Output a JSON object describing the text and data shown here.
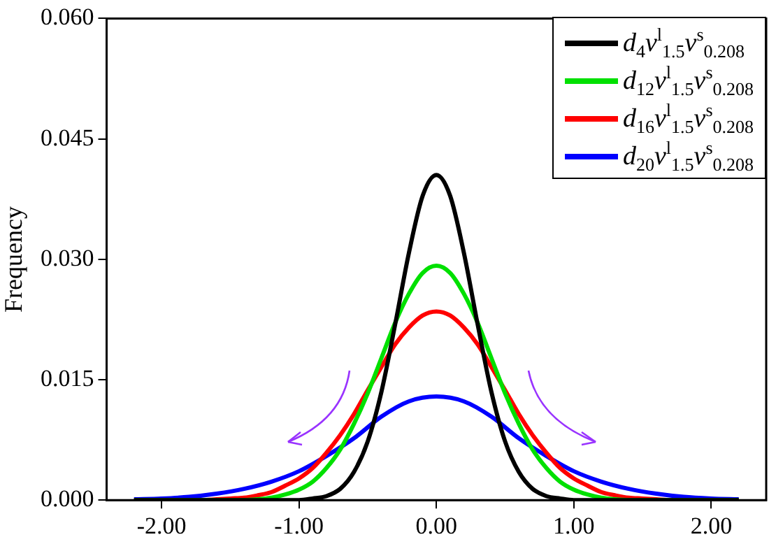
{
  "chart_data": {
    "type": "line",
    "ylabel": "Frequency",
    "xlim": [
      -2.4,
      2.4
    ],
    "ylim": [
      0,
      0.06
    ],
    "xticks": [
      {
        "value": -2,
        "label": "-2.00"
      },
      {
        "value": -1,
        "label": "-1.00"
      },
      {
        "value": 0,
        "label": "0.00"
      },
      {
        "value": 1,
        "label": "1.00"
      },
      {
        "value": 2,
        "label": "2.00"
      }
    ],
    "yticks": [
      {
        "value": 0,
        "label": "0.000"
      },
      {
        "value": 0.015,
        "label": "0.015"
      },
      {
        "value": 0.03,
        "label": "0.030"
      },
      {
        "value": 0.045,
        "label": "0.045"
      },
      {
        "value": 0.06,
        "label": "0.060"
      }
    ],
    "grid": false,
    "legend": "top right",
    "marker": "none",
    "line_style": "solid",
    "series": [
      {
        "name": "d$_{4}$ν$^{l}$$_{1.5}$ν$^{s}$$_{0.208}$",
        "color": "#000000",
        "x": [
          -2.2,
          -1.0,
          -0.9,
          -0.8,
          -0.7,
          -0.6,
          -0.5,
          -0.4,
          -0.3,
          -0.2,
          -0.1,
          0,
          0.1,
          0.2,
          0.3,
          0.4,
          0.5,
          0.6,
          0.7,
          0.8,
          0.9,
          1.0,
          2.2
        ],
        "values": [
          0,
          0,
          0.0002,
          0.0005,
          0.0014,
          0.0035,
          0.0073,
          0.0135,
          0.0219,
          0.0308,
          0.0379,
          0.0405,
          0.0379,
          0.0308,
          0.0219,
          0.0135,
          0.0073,
          0.0035,
          0.0014,
          0.0005,
          0.0002,
          0,
          0
        ]
      },
      {
        "name": "d$_{12}$ν$^{l}$$_{1.5}$ν$^{s}$$_{0.208}$",
        "color": "#00e000",
        "x": [
          -2.2,
          -1.4,
          -1.3,
          -1.2,
          -1.1,
          -1.0,
          -0.9,
          -0.8,
          -0.7,
          -0.6,
          -0.5,
          -0.4,
          -0.3,
          -0.2,
          -0.1,
          0,
          0.1,
          0.2,
          0.3,
          0.4,
          0.5,
          0.6,
          0.7,
          0.8,
          0.9,
          1.0,
          1.1,
          1.2,
          1.3,
          1.4,
          2.2
        ],
        "values": [
          0,
          0,
          0.0001,
          0.0003,
          0.0007,
          0.0013,
          0.0023,
          0.004,
          0.0063,
          0.0095,
          0.0133,
          0.0177,
          0.0221,
          0.0257,
          0.0283,
          0.0292,
          0.0283,
          0.0257,
          0.0221,
          0.0177,
          0.0133,
          0.0095,
          0.0063,
          0.004,
          0.0023,
          0.0013,
          0.0007,
          0.0003,
          0.0001,
          0,
          0
        ]
      },
      {
        "name": "d$_{16}$ν$^{l}$$_{1.5}$ν$^{s}$$_{0.208}$",
        "color": "#ff0000",
        "x": [
          -2.2,
          -1.7,
          -1.6,
          -1.5,
          -1.4,
          -1.3,
          -1.2,
          -1.1,
          -1.0,
          -0.9,
          -0.8,
          -0.7,
          -0.6,
          -0.5,
          -0.4,
          -0.3,
          -0.2,
          -0.1,
          0,
          0.1,
          0.2,
          0.3,
          0.4,
          0.5,
          0.6,
          0.7,
          0.8,
          0.9,
          1.0,
          1.1,
          1.2,
          1.3,
          1.4,
          1.5,
          1.6,
          1.7,
          2.2
        ],
        "values": [
          0,
          0,
          0.0001,
          0.0002,
          0.0003,
          0.0006,
          0.001,
          0.0018,
          0.0027,
          0.004,
          0.0059,
          0.0081,
          0.0107,
          0.0137,
          0.0166,
          0.0194,
          0.0215,
          0.023,
          0.0235,
          0.023,
          0.0215,
          0.0194,
          0.0166,
          0.0137,
          0.0107,
          0.0081,
          0.0059,
          0.004,
          0.0027,
          0.0018,
          0.001,
          0.0006,
          0.0003,
          0.0002,
          0.0001,
          0,
          0
        ]
      },
      {
        "name": "d$_{20}$ν$^{l}$$_{1.5}$ν$^{s}$$_{0.208}$",
        "color": "#0000ff",
        "x": [
          -2.2,
          -2.0,
          -1.8,
          -1.6,
          -1.4,
          -1.2,
          -1.0,
          -0.8,
          -0.6,
          -0.4,
          -0.2,
          0,
          0.2,
          0.4,
          0.6,
          0.8,
          1.0,
          1.2,
          1.4,
          1.6,
          1.8,
          2.0,
          2.2
        ],
        "values": [
          0.0001,
          0.0002,
          0.0004,
          0.0008,
          0.0014,
          0.0023,
          0.0036,
          0.0055,
          0.0077,
          0.0104,
          0.0123,
          0.0129,
          0.0123,
          0.0104,
          0.0077,
          0.0055,
          0.0036,
          0.0023,
          0.0014,
          0.0008,
          0.0004,
          0.0002,
          0.0001
        ]
      }
    ]
  }
}
